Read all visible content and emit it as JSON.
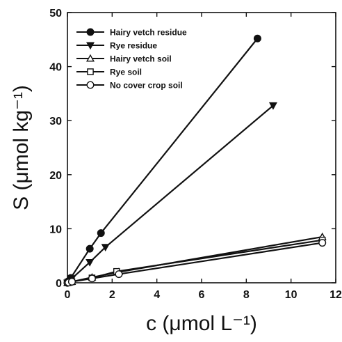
{
  "chart_data": {
    "type": "line",
    "title": "",
    "xlabel": "c (μmol L⁻¹)",
    "ylabel": "S (μmol kg⁻¹)",
    "xlim": [
      0,
      12
    ],
    "ylim": [
      0,
      50
    ],
    "xticks": [
      0,
      2,
      4,
      6,
      8,
      10,
      12
    ],
    "yticks": [
      0,
      10,
      20,
      30,
      40,
      50
    ],
    "grid": false,
    "legend_position": "top-left",
    "series": [
      {
        "name": "Hairy vetch residue",
        "marker": "filled-circle",
        "color": "#111111",
        "points": [
          [
            0,
            0
          ],
          [
            0.05,
            0.3
          ],
          [
            0.15,
            0.9
          ],
          [
            1.0,
            6.3
          ],
          [
            1.5,
            9.2
          ],
          [
            8.5,
            45.2
          ]
        ]
      },
      {
        "name": "Rye residue",
        "marker": "filled-triangle-down",
        "color": "#111111",
        "points": [
          [
            0,
            0
          ],
          [
            0.05,
            0.2
          ],
          [
            0.2,
            0.8
          ],
          [
            1.0,
            3.8
          ],
          [
            1.7,
            6.6
          ],
          [
            9.2,
            32.8
          ]
        ]
      },
      {
        "name": "Hairy vetch soil",
        "marker": "open-triangle-up",
        "color": "#111111",
        "points": [
          [
            0,
            0
          ],
          [
            0.05,
            0.05
          ],
          [
            0.2,
            0.2
          ],
          [
            1.1,
            1.0
          ],
          [
            2.3,
            2.0
          ],
          [
            11.4,
            8.5
          ]
        ]
      },
      {
        "name": "Rye soil",
        "marker": "open-square",
        "color": "#111111",
        "points": [
          [
            0,
            0
          ],
          [
            0.05,
            0.05
          ],
          [
            0.2,
            0.2
          ],
          [
            1.1,
            0.9
          ],
          [
            2.2,
            2.1
          ],
          [
            11.4,
            7.9
          ]
        ]
      },
      {
        "name": "No cover crop soil",
        "marker": "open-circle",
        "color": "#111111",
        "points": [
          [
            0,
            0
          ],
          [
            0.05,
            0.05
          ],
          [
            0.2,
            0.2
          ],
          [
            1.1,
            0.8
          ],
          [
            2.3,
            1.6
          ],
          [
            11.4,
            7.4
          ]
        ]
      }
    ]
  }
}
